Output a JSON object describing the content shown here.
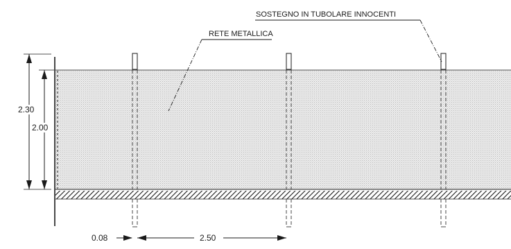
{
  "labels": {
    "support_callout": "SOSTEGNO IN TUBOLARE INNOCENTI",
    "mesh_callout": "RETE METALLICA"
  },
  "dimensions": {
    "total_height": "2.30",
    "mesh_height": "2.00",
    "post_width": "0.08",
    "post_spacing": "2.50"
  },
  "colors": {
    "line": "#1a1a1a",
    "mesh_fill": "#d9d9d9",
    "background": "#ffffff"
  }
}
